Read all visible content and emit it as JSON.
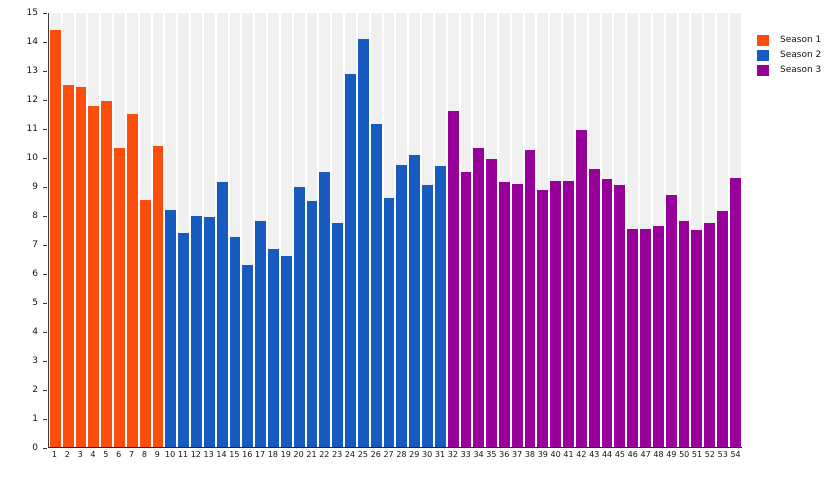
{
  "chart_data": {
    "type": "bar",
    "title": "",
    "xlabel": "",
    "ylabel": "",
    "ylim": [
      0,
      15
    ],
    "ytick_step": 1,
    "grid": "striped-vertical-background",
    "legend_position": "top-right",
    "categories": [
      1,
      2,
      3,
      4,
      5,
      6,
      7,
      8,
      9,
      10,
      11,
      12,
      13,
      14,
      15,
      16,
      17,
      18,
      19,
      20,
      21,
      22,
      23,
      24,
      25,
      26,
      27,
      28,
      29,
      30,
      31,
      32,
      33,
      34,
      35,
      36,
      37,
      38,
      39,
      40,
      41,
      42,
      43,
      44,
      45,
      46,
      47,
      48,
      49,
      50,
      51,
      52,
      53,
      54
    ],
    "series": [
      {
        "name": "Season 1",
        "color": "#fb4d0c",
        "values": [
          14.4,
          12.5,
          12.45,
          11.8,
          11.95,
          10.35,
          11.5,
          8.55,
          10.4
        ]
      },
      {
        "name": "Season 2",
        "color": "#165bbf",
        "values": [
          8.2,
          7.4,
          8.0,
          7.95,
          9.15,
          7.25,
          6.3,
          7.8,
          6.85,
          6.6,
          9.0,
          8.5,
          9.5,
          7.75,
          12.9,
          14.1,
          11.15,
          8.6,
          9.75,
          10.1,
          9.05,
          9.7
        ]
      },
      {
        "name": "Season 3",
        "color": "#970099",
        "values": [
          11.6,
          9.5,
          10.35,
          9.95,
          9.15,
          9.1,
          10.25,
          8.9,
          9.2,
          9.2,
          10.95,
          9.6,
          9.25,
          9.05,
          7.55,
          7.55,
          7.65,
          8.7,
          7.8,
          7.5,
          7.75,
          8.15,
          9.3
        ]
      }
    ]
  },
  "legend": {
    "items": [
      {
        "label": "Season 1",
        "color": "#fb4d0c"
      },
      {
        "label": "Season 2",
        "color": "#165bbf"
      },
      {
        "label": "Season 3",
        "color": "#970099"
      }
    ]
  },
  "colors": {
    "background_stripe": "#f0f0f0",
    "axis_line": "#3a3a3a",
    "text": "#111111"
  }
}
